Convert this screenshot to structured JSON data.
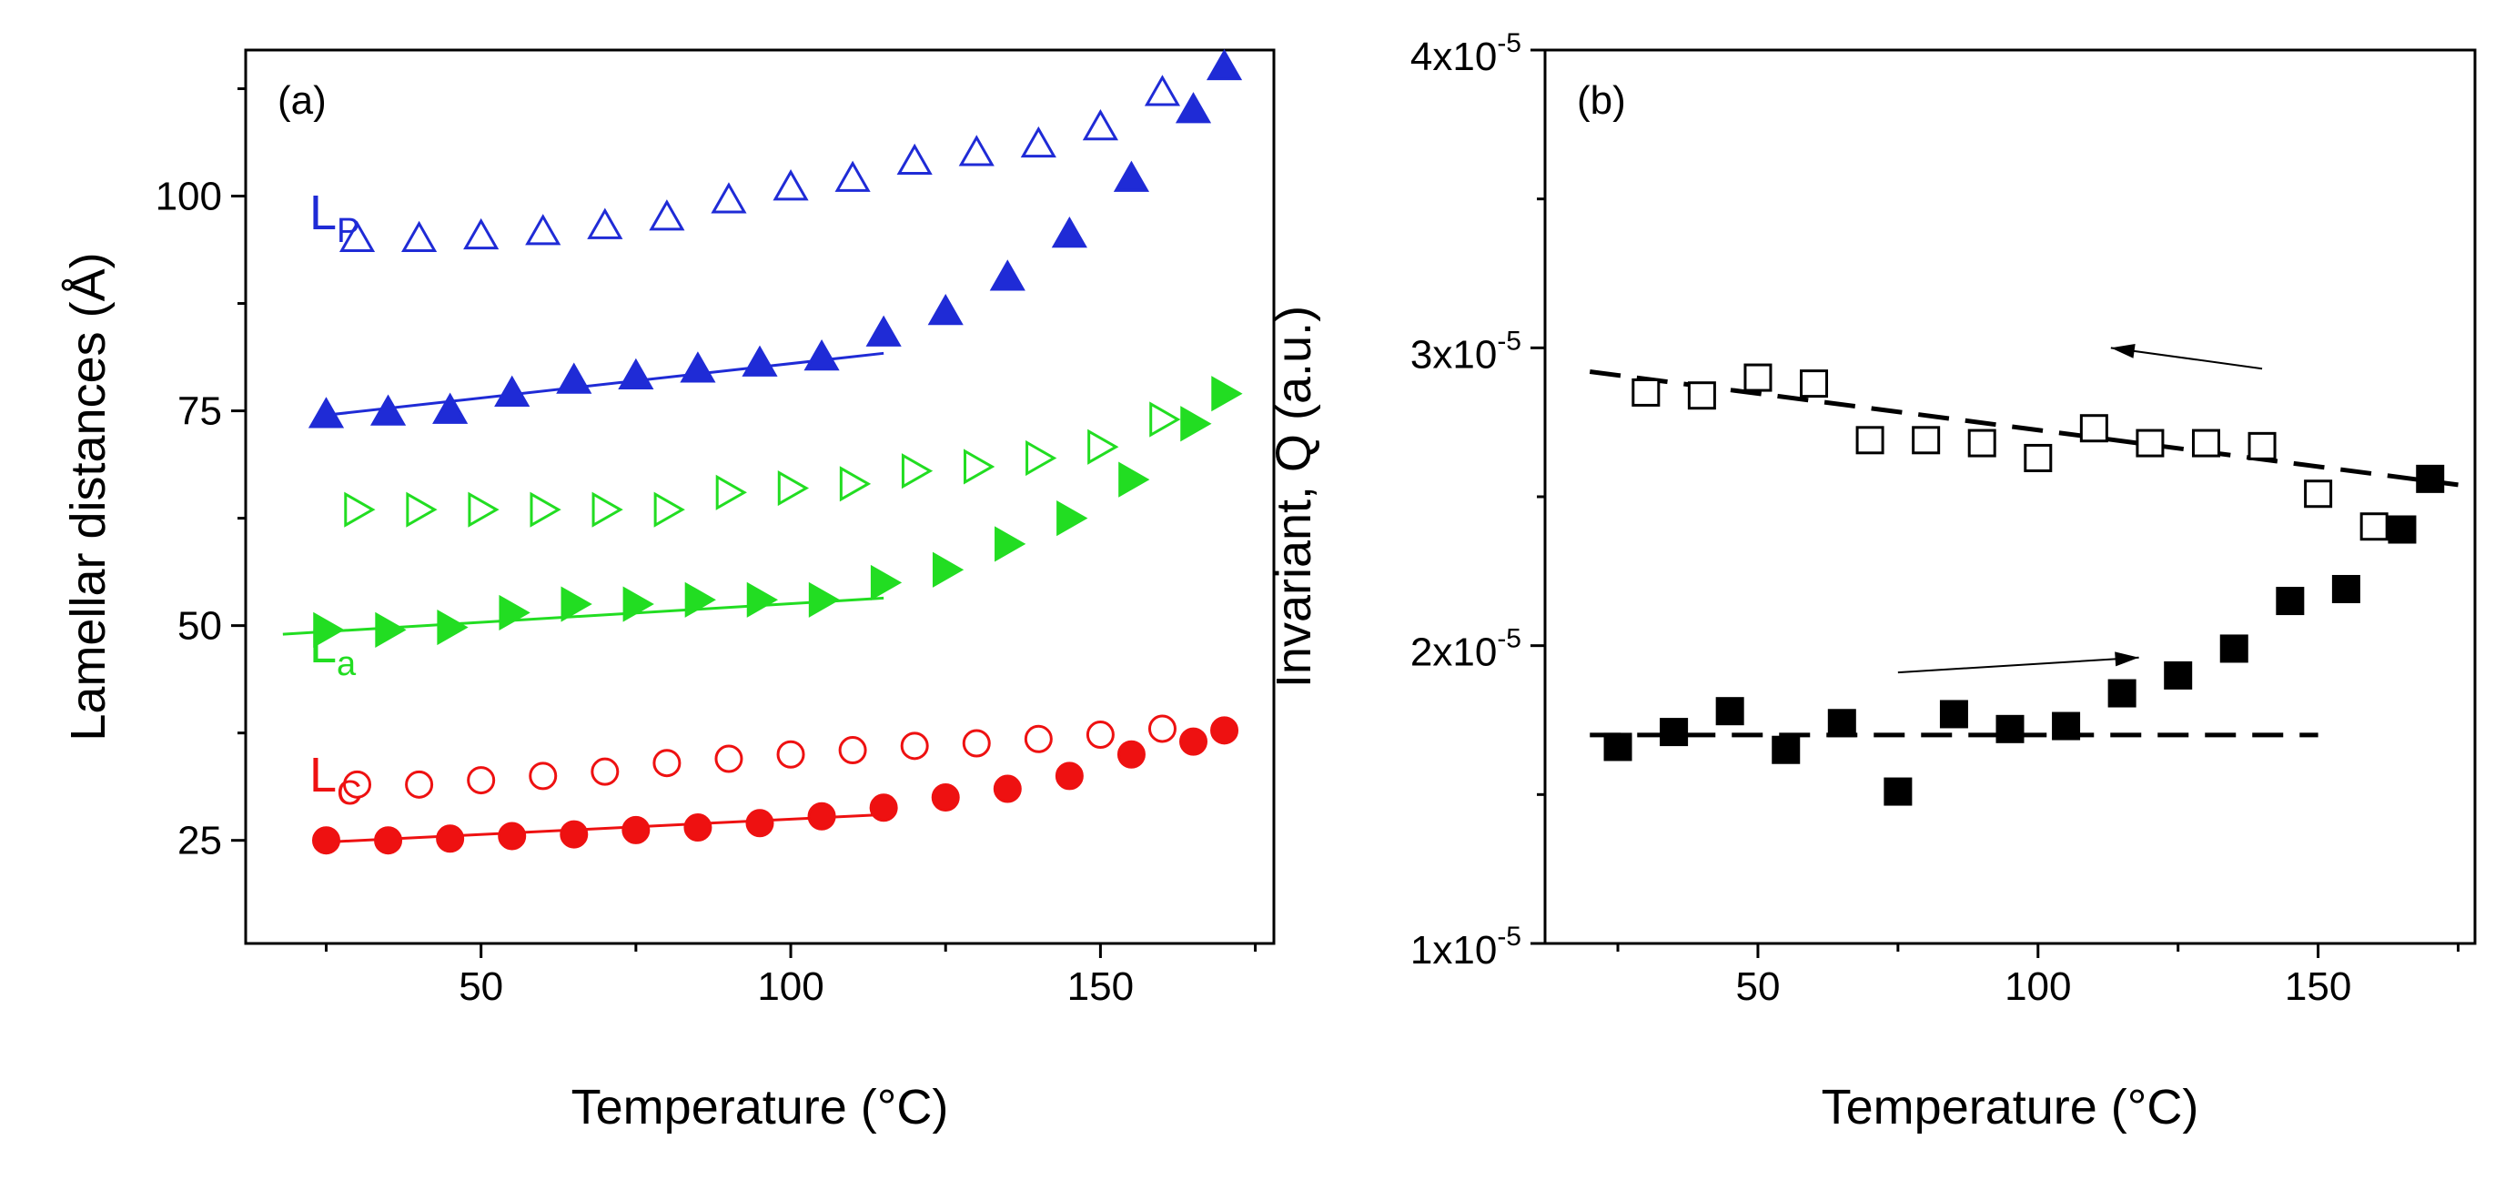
{
  "chart_data": [
    {
      "type": "scatter",
      "panel_label": "(a)",
      "xlabel": "Temperature (°C)",
      "ylabel": "Lamellar distances (Å)",
      "xlim": [
        12,
        178
      ],
      "ylim": [
        13,
        117
      ],
      "xticks": [
        50,
        100,
        150
      ],
      "yticks": [
        25,
        50,
        75,
        100
      ],
      "tick_labels_x": [
        "50",
        "100",
        "150"
      ],
      "tick_labels_y": [
        "25",
        "50",
        "75",
        "100"
      ],
      "labels": [
        {
          "main": "L",
          "sub": "P",
          "color": "#1f2bd6"
        },
        {
          "main": "L",
          "sub": "a",
          "color": "#22dd22"
        },
        {
          "main": "L",
          "sub": "C",
          "color": "#ee1111"
        }
      ],
      "series": [
        {
          "name": "Lp open",
          "marker": "triangle-up",
          "filled": false,
          "color": "#1f2bd6",
          "x": [
            30,
            40,
            50,
            60,
            70,
            80,
            90,
            100,
            110,
            120,
            130,
            140,
            150,
            160
          ],
          "y": [
            95,
            95,
            95.3,
            95.8,
            96.5,
            97.5,
            99.5,
            101,
            102,
            104,
            105,
            106,
            108,
            112
          ]
        },
        {
          "name": "Lp filled",
          "marker": "triangle-up",
          "filled": true,
          "color": "#1f2bd6",
          "x": [
            25,
            35,
            45,
            55,
            65,
            75,
            85,
            95,
            105,
            115,
            125,
            135,
            145,
            155,
            165,
            170
          ],
          "y": [
            74.5,
            74.8,
            75,
            77,
            78.5,
            79,
            79.8,
            80.5,
            81.2,
            84,
            86.5,
            90.5,
            95.5,
            102,
            110,
            115
          ]
        },
        {
          "name": "La open",
          "marker": "triangle-right",
          "filled": false,
          "color": "#22dd22",
          "x": [
            30,
            40,
            50,
            60,
            70,
            80,
            90,
            100,
            110,
            120,
            130,
            140,
            150,
            160
          ],
          "y": [
            63.5,
            63.5,
            63.5,
            63.5,
            63.5,
            63.5,
            65.5,
            66,
            66.5,
            68,
            68.5,
            69.5,
            70.8,
            74
          ]
        },
        {
          "name": "La filled",
          "marker": "triangle-right",
          "filled": true,
          "color": "#22dd22",
          "x": [
            25,
            35,
            45,
            55,
            65,
            75,
            85,
            95,
            105,
            115,
            125,
            135,
            145,
            155,
            165,
            170
          ],
          "y": [
            49.5,
            49.5,
            49.8,
            51.5,
            52.5,
            52.5,
            53,
            53,
            53,
            55,
            56.5,
            59.5,
            62.5,
            67,
            73.5,
            77
          ]
        },
        {
          "name": "Lc open",
          "marker": "circle",
          "filled": false,
          "color": "#ee1111",
          "x": [
            30,
            40,
            50,
            60,
            70,
            80,
            90,
            100,
            110,
            120,
            130,
            140,
            150,
            160
          ],
          "y": [
            31.5,
            31.5,
            32,
            32.5,
            33,
            34,
            34.5,
            35,
            35.5,
            36,
            36.3,
            36.8,
            37.3,
            38
          ]
        },
        {
          "name": "Lc filled",
          "marker": "circle",
          "filled": true,
          "color": "#ee1111",
          "x": [
            25,
            35,
            45,
            55,
            65,
            75,
            85,
            95,
            105,
            115,
            125,
            135,
            145,
            155,
            165,
            170
          ],
          "y": [
            25,
            25,
            25.2,
            25.5,
            25.7,
            26.2,
            26.5,
            27,
            27.8,
            28.8,
            30,
            31,
            32.5,
            35,
            36.5,
            37.8
          ]
        }
      ],
      "fit_lines": [
        {
          "color": "#1f2bd6",
          "x": [
            25,
            115
          ],
          "y": [
            74.5,
            81.7
          ]
        },
        {
          "color": "#22dd22",
          "x": [
            18,
            115
          ],
          "y": [
            49,
            53.2
          ]
        },
        {
          "color": "#ee1111",
          "x": [
            25,
            115
          ],
          "y": [
            24.8,
            28
          ]
        }
      ]
    },
    {
      "type": "scatter",
      "panel_label": "(b)",
      "xlabel": "Temperature (°C)",
      "ylabel": "Invariant, Q (a.u.)",
      "xlim": [
        12,
        178
      ],
      "ylim": [
        1e-05,
        4e-05
      ],
      "xticks": [
        50,
        100,
        150
      ],
      "yticks": [
        1e-05,
        2e-05,
        3e-05,
        4e-05
      ],
      "tick_labels_x": [
        "50",
        "100",
        "150"
      ],
      "tick_labels_y": [
        {
          "base": "1x10",
          "exp": "-5"
        },
        {
          "base": "2x10",
          "exp": "-5"
        },
        {
          "base": "3x10",
          "exp": "-5"
        },
        {
          "base": "4x10",
          "exp": "-5"
        }
      ],
      "series": [
        {
          "name": "Q open",
          "marker": "square",
          "filled": false,
          "color": "#000000",
          "x": [
            30,
            40,
            50,
            60,
            70,
            80,
            90,
            100,
            110,
            120,
            130,
            140,
            150,
            160
          ],
          "y": [
            2.85e-05,
            2.84e-05,
            2.9e-05,
            2.88e-05,
            2.69e-05,
            2.69e-05,
            2.68e-05,
            2.63e-05,
            2.73e-05,
            2.68e-05,
            2.68e-05,
            2.67e-05,
            2.51e-05,
            2.4e-05
          ]
        },
        {
          "name": "Q filled",
          "marker": "square",
          "filled": true,
          "color": "#000000",
          "x": [
            25,
            35,
            45,
            55,
            65,
            75,
            85,
            95,
            105,
            115,
            125,
            135,
            145,
            155,
            165,
            170
          ],
          "y": [
            1.66e-05,
            1.71e-05,
            1.78e-05,
            1.65e-05,
            1.74e-05,
            1.51e-05,
            1.77e-05,
            1.72e-05,
            1.73e-05,
            1.84e-05,
            1.9e-05,
            1.99e-05,
            2.15e-05,
            2.19e-05,
            2.39e-05,
            2.56e-05
          ]
        }
      ],
      "dashed_lines": [
        {
          "color": "#000000",
          "x": [
            20,
            175
          ],
          "y": [
            2.92e-05,
            2.54e-05
          ]
        },
        {
          "color": "#000000",
          "x": [
            20,
            150
          ],
          "y": [
            1.7e-05,
            1.7e-05
          ]
        }
      ],
      "arrows": [
        {
          "from": [
            140,
            2.93e-05
          ],
          "to": [
            113,
            3e-05
          ]
        },
        {
          "from": [
            75,
            1.91e-05
          ],
          "to": [
            118,
            1.96e-05
          ]
        }
      ]
    }
  ]
}
